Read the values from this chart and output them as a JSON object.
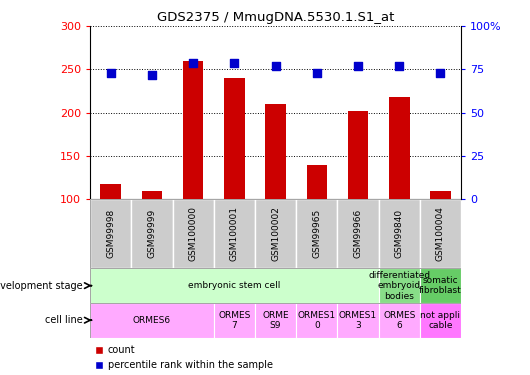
{
  "title": "GDS2375 / MmugDNA.5530.1.S1_at",
  "samples": [
    "GSM99998",
    "GSM99999",
    "GSM100000",
    "GSM100001",
    "GSM100002",
    "GSM99965",
    "GSM99966",
    "GSM99840",
    "GSM100004"
  ],
  "counts": [
    118,
    110,
    260,
    240,
    210,
    140,
    202,
    218,
    110
  ],
  "percentiles": [
    73,
    72,
    79,
    79,
    77,
    73,
    77,
    77,
    73
  ],
  "ylim_left": [
    100,
    300
  ],
  "ylim_right": [
    0,
    100
  ],
  "yticks_left": [
    100,
    150,
    200,
    250,
    300
  ],
  "yticks_right": [
    0,
    25,
    50,
    75,
    100
  ],
  "ytick_right_labels": [
    "0",
    "25",
    "50",
    "75",
    "100%"
  ],
  "bar_color": "#cc0000",
  "dot_color": "#0000cc",
  "sample_box_color": "#cccccc",
  "dev_configs": [
    {
      "text": "embryonic stem cell",
      "start": 0,
      "end": 7,
      "color": "#ccffcc"
    },
    {
      "text": "differentiated\nembryoid\nbodies",
      "start": 7,
      "end": 8,
      "color": "#88dd88"
    },
    {
      "text": "somatic\nfibroblast",
      "start": 8,
      "end": 9,
      "color": "#66cc66"
    }
  ],
  "cell_configs": [
    {
      "text": "ORMES6",
      "start": 0,
      "end": 3,
      "color": "#ffaaff"
    },
    {
      "text": "ORMES\n7",
      "start": 3,
      "end": 4,
      "color": "#ffaaff"
    },
    {
      "text": "ORME\nS9",
      "start": 4,
      "end": 5,
      "color": "#ffaaff"
    },
    {
      "text": "ORMES1\n0",
      "start": 5,
      "end": 6,
      "color": "#ffaaff"
    },
    {
      "text": "ORMES1\n3",
      "start": 6,
      "end": 7,
      "color": "#ffaaff"
    },
    {
      "text": "ORMES\n6",
      "start": 7,
      "end": 8,
      "color": "#ffaaff"
    },
    {
      "text": "not appli\ncable",
      "start": 8,
      "end": 9,
      "color": "#ff77ff"
    }
  ],
  "legend_count": "count",
  "legend_pct": "percentile rank within the sample",
  "left_label_dev": "development stage",
  "left_label_cell": "cell line"
}
